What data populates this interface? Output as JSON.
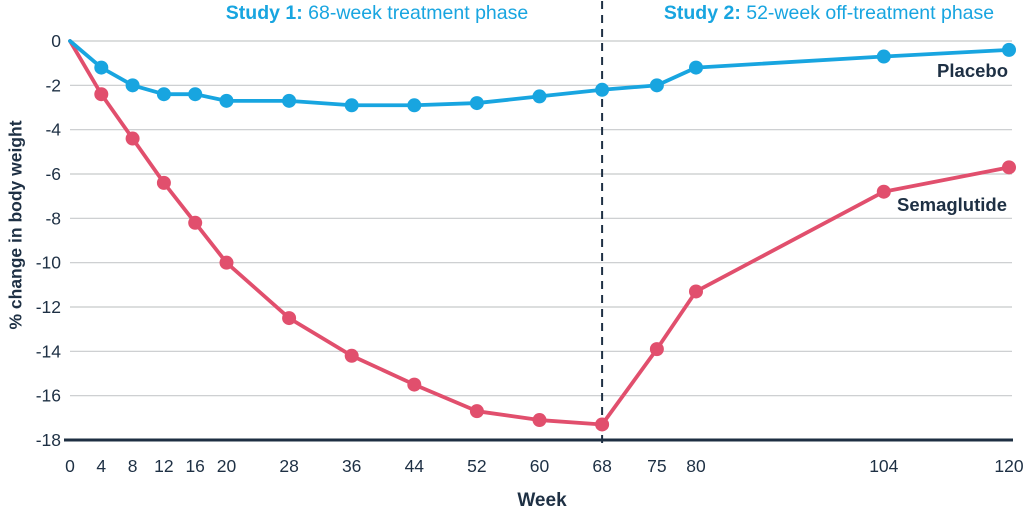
{
  "headers": {
    "study1_label": "Study 1:",
    "study1_text": " 68-week treatment phase",
    "study2_label": "Study 2:",
    "study2_text": " 52-week off-treatment phase"
  },
  "colors": {
    "accent_blue": "#18a5e0",
    "accent_red": "#e14f6d",
    "navy_text": "#1e3044",
    "grid": "#c7c9cb",
    "axis_line": "#1e2f42"
  },
  "chart_data": {
    "type": "line",
    "title": "",
    "xlabel": "Week",
    "ylabel": "% change in body weight",
    "xlim": [
      0,
      120
    ],
    "ylim": [
      -18,
      0
    ],
    "grid": "horizontal",
    "legend_position": "inline-right",
    "x": [
      0,
      4,
      8,
      12,
      16,
      20,
      28,
      36,
      44,
      52,
      60,
      68,
      75,
      80,
      104,
      120
    ],
    "xticks": [
      0,
      4,
      8,
      12,
      16,
      20,
      28,
      36,
      44,
      52,
      60,
      68,
      75,
      80,
      104,
      120
    ],
    "yticks": [
      0,
      -2,
      -4,
      -6,
      -8,
      -10,
      -12,
      -14,
      -16,
      -18
    ],
    "series": [
      {
        "name": "Placebo",
        "color": "#18a5e0",
        "values": [
          0,
          -1.2,
          -2.0,
          -2.4,
          -2.4,
          -2.7,
          -2.7,
          -2.9,
          -2.9,
          -2.8,
          -2.5,
          -2.2,
          -2.0,
          -1.2,
          -0.7,
          -0.4
        ]
      },
      {
        "name": "Semaglutide",
        "color": "#e14f6d",
        "values": [
          0,
          -2.4,
          -4.4,
          -6.4,
          -8.2,
          -10.0,
          -12.5,
          -14.2,
          -15.5,
          -16.7,
          -17.1,
          -17.3,
          -13.9,
          -11.3,
          -6.8,
          -5.7
        ]
      }
    ],
    "phases": [
      {
        "label_bold": "Study 1:",
        "label_text": "68-week treatment phase",
        "week_range": [
          0,
          68
        ]
      },
      {
        "label_bold": "Study 2:",
        "label_text": "52-week off-treatment phase",
        "week_range": [
          68,
          120
        ]
      }
    ],
    "divider_week": 68
  }
}
